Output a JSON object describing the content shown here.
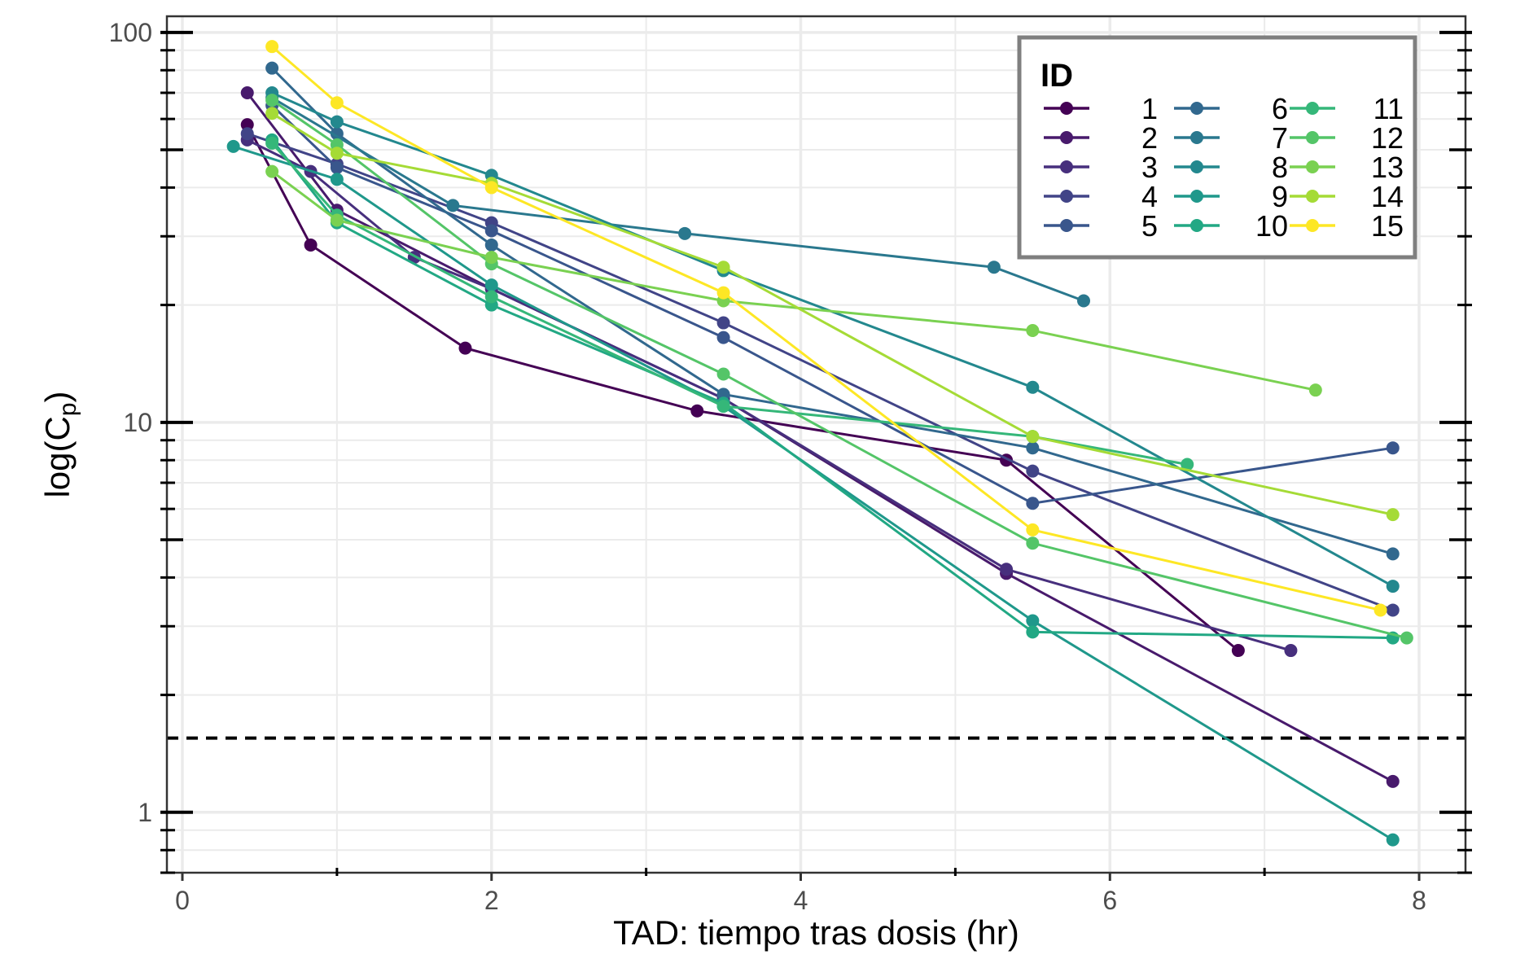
{
  "chart_data": {
    "type": "line",
    "title": "",
    "xlabel": "TAD: tiempo tras dosis (hr)",
    "ylabel": "log(C",
    "ylabel_sub": "p",
    "ylabel_close": ")",
    "xlim": [
      -0.1,
      8.3
    ],
    "ylim_log": [
      0.7,
      110
    ],
    "y_scale": "log10",
    "x_ticks": [
      0,
      2,
      4,
      6,
      8
    ],
    "x_tick_labels": [
      "0",
      "2",
      "4",
      "6",
      "8"
    ],
    "y_ticks": [
      1,
      10,
      100
    ],
    "y_tick_labels": [
      "1",
      "10",
      "100"
    ],
    "grid": true,
    "reference_line": {
      "y": 1.55,
      "style": "dashed"
    },
    "legend": {
      "title": "ID",
      "position": "top-right",
      "columns": 3
    },
    "series": [
      {
        "name": "1",
        "color": "#440154",
        "x": [
          0.42,
          0.83,
          1.83,
          3.33,
          5.33,
          6.83
        ],
        "y": [
          58,
          28.5,
          15.5,
          10.7,
          8.0,
          2.6
        ]
      },
      {
        "name": "2",
        "color": "#481A6C",
        "x": [
          0.42,
          1.0,
          2.0,
          3.5,
          5.33,
          7.83
        ],
        "y": [
          70,
          35,
          22,
          11.5,
          4.1,
          1.2
        ]
      },
      {
        "name": "3",
        "color": "#472F7D",
        "x": [
          0.42,
          0.83,
          1.5,
          2.0,
          3.5,
          5.33,
          7.17
        ],
        "y": [
          53,
          44,
          26.5,
          22,
          11.5,
          4.2,
          2.6
        ]
      },
      {
        "name": "4",
        "color": "#414487",
        "x": [
          0.42,
          1.0,
          2.0,
          3.5,
          5.5,
          7.83
        ],
        "y": [
          55,
          46,
          32.5,
          18,
          7.5,
          3.3
        ]
      },
      {
        "name": "5",
        "color": "#39568C",
        "x": [
          0.58,
          1.0,
          2.0,
          3.5,
          5.5,
          7.83
        ],
        "y": [
          65,
          45,
          31,
          16.5,
          6.2,
          8.6
        ]
      },
      {
        "name": "6",
        "color": "#31688E",
        "x": [
          0.58,
          1.0,
          2.0,
          3.5,
          5.5,
          7.83
        ],
        "y": [
          81,
          55,
          28.5,
          11.8,
          8.6,
          4.6
        ]
      },
      {
        "name": "7",
        "color": "#2A788E",
        "x": [
          0.58,
          1.75,
          3.25,
          5.25,
          5.83
        ],
        "y": [
          68,
          36,
          30.5,
          25,
          20.5
        ]
      },
      {
        "name": "8",
        "color": "#23888E",
        "x": [
          0.58,
          1.0,
          2.0,
          3.5,
          5.5,
          7.83
        ],
        "y": [
          70,
          59,
          43,
          24.5,
          12.3,
          3.8
        ]
      },
      {
        "name": "9",
        "color": "#1F988B",
        "x": [
          0.33,
          1.0,
          2.0,
          3.5,
          5.5,
          7.83
        ],
        "y": [
          51,
          42,
          22.5,
          11.0,
          3.1,
          0.85
        ]
      },
      {
        "name": "10",
        "color": "#22A884",
        "x": [
          0.58,
          1.0,
          2.0,
          3.5,
          5.5,
          7.83
        ],
        "y": [
          53,
          32.5,
          20,
          11.2,
          2.9,
          2.8
        ]
      },
      {
        "name": "11",
        "color": "#35B779",
        "x": [
          0.58,
          1.0,
          2.0,
          3.5,
          5.5,
          6.5
        ],
        "y": [
          52,
          34,
          21,
          11.0,
          9.2,
          7.8
        ]
      },
      {
        "name": "12",
        "color": "#54C568",
        "x": [
          0.58,
          1.0,
          2.0,
          3.5,
          5.5,
          7.92
        ],
        "y": [
          67,
          51.5,
          25.5,
          13.3,
          4.9,
          2.8
        ]
      },
      {
        "name": "13",
        "color": "#7AD151",
        "x": [
          0.58,
          1.0,
          2.0,
          3.5,
          5.5,
          7.33
        ],
        "y": [
          44,
          33,
          26.5,
          20.5,
          17.2,
          12.1
        ]
      },
      {
        "name": "14",
        "color": "#A5DB36",
        "x": [
          0.58,
          1.0,
          2.0,
          3.5,
          5.5,
          7.83
        ],
        "y": [
          62,
          49,
          41,
          25,
          9.2,
          5.8
        ]
      },
      {
        "name": "15",
        "color": "#FDE725",
        "x": [
          0.58,
          1.0,
          2.0,
          3.5,
          5.5,
          7.75
        ],
        "y": [
          92,
          66,
          40,
          21.5,
          5.3,
          3.3
        ]
      }
    ]
  }
}
